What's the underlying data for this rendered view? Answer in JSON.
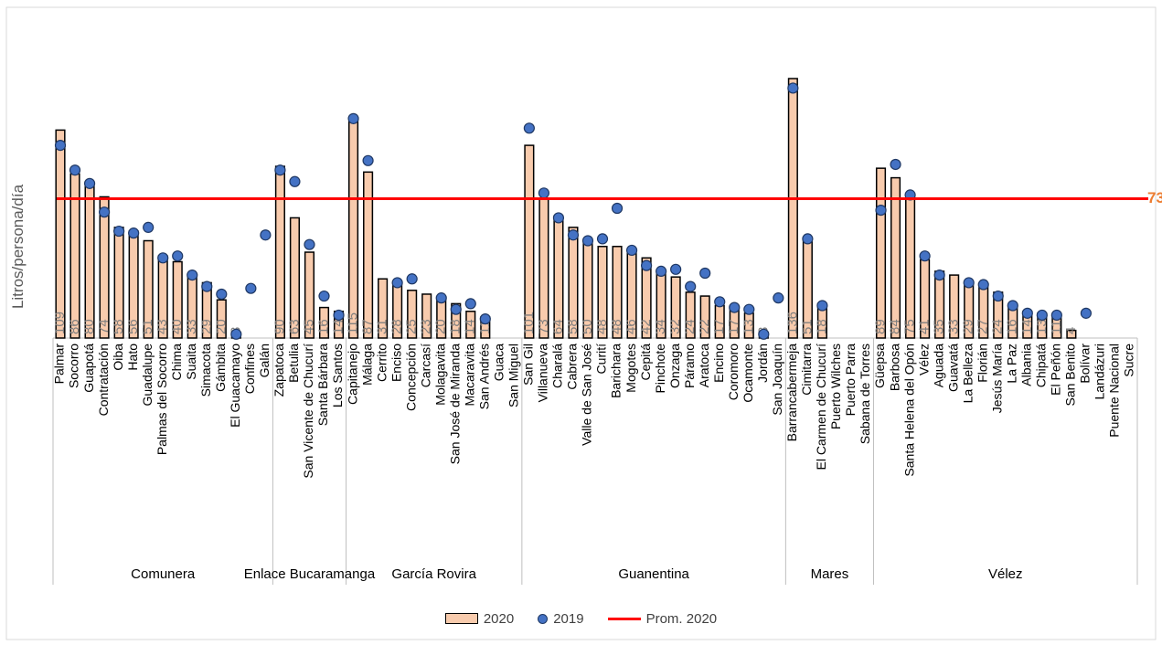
{
  "chart_data": {
    "type": "bar",
    "ylabel": "Litros/persona/día",
    "average_line": {
      "name": "Prom. 2020",
      "value": 73,
      "label": "73",
      "color": "#ff0000"
    },
    "series_meta": [
      {
        "key": "v2020",
        "name": "2020",
        "kind": "bar",
        "color": "#f8cbad"
      },
      {
        "key": "v2019",
        "name": "2019",
        "kind": "marker",
        "color": "#4472c4"
      },
      {
        "key": "avg",
        "name": "Prom. 2020",
        "kind": "line",
        "color": "#ff0000"
      }
    ],
    "ylim": [
      0,
      140
    ],
    "groups": [
      {
        "name": "Comunera",
        "items": [
          {
            "cat": "Palmar",
            "v2020": 109,
            "v2019": 101
          },
          {
            "cat": "Socorro",
            "v2020": 86,
            "v2019": 88
          },
          {
            "cat": "Guapotá",
            "v2020": 80,
            "v2019": 81
          },
          {
            "cat": "Contratación",
            "v2020": 74,
            "v2019": 66
          },
          {
            "cat": "Oiba",
            "v2020": 58,
            "v2019": 56
          },
          {
            "cat": "Hato",
            "v2020": 56,
            "v2019": 55
          },
          {
            "cat": "Guadalupe",
            "v2020": 51,
            "v2019": 58
          },
          {
            "cat": "Palmas del Socorro",
            "v2020": 43,
            "v2019": 42
          },
          {
            "cat": "Chima",
            "v2020": 40,
            "v2019": 43
          },
          {
            "cat": "Suaita",
            "v2020": 33,
            "v2019": 33
          },
          {
            "cat": "Simacota",
            "v2020": 29,
            "v2019": 27
          },
          {
            "cat": "Gámbita",
            "v2020": 20,
            "v2019": 23
          },
          {
            "cat": "El Guacamayo",
            "v2020": 3,
            "v2019": 2
          },
          {
            "cat": "Confines",
            "v2020": null,
            "v2019": 26
          },
          {
            "cat": "Galán",
            "v2020": null,
            "v2019": 54
          }
        ]
      },
      {
        "name": "Enlace Bucaramanga",
        "items": [
          {
            "cat": "Zapatoca",
            "v2020": 90,
            "v2019": 88
          },
          {
            "cat": "Betulia",
            "v2020": 63,
            "v2019": 82
          },
          {
            "cat": "San Vicente de Chucurí",
            "v2020": 45,
            "v2019": 49
          },
          {
            "cat": "Santa Bárbara",
            "v2020": 16,
            "v2019": 22
          },
          {
            "cat": "Los Santos",
            "v2020": 14,
            "v2019": 12
          }
        ]
      },
      {
        "name": "García Rovira",
        "items": [
          {
            "cat": "Capitanejo",
            "v2020": 115,
            "v2019": 115
          },
          {
            "cat": "Málaga",
            "v2020": 87,
            "v2019": 93
          },
          {
            "cat": "Cerrito",
            "v2020": 31,
            "v2019": null
          },
          {
            "cat": "Enciso",
            "v2020": 28,
            "v2019": 29
          },
          {
            "cat": "Concepción",
            "v2020": 25,
            "v2019": 31
          },
          {
            "cat": "Carcasí",
            "v2020": 23,
            "v2019": null
          },
          {
            "cat": "Molagavita",
            "v2020": 20,
            "v2019": 21
          },
          {
            "cat": "San José de Miranda",
            "v2020": 18,
            "v2019": 15
          },
          {
            "cat": "Macaravita",
            "v2020": 14,
            "v2019": 18
          },
          {
            "cat": "San Andrés",
            "v2020": 11,
            "v2019": 10
          },
          {
            "cat": "Guaca",
            "v2020": null,
            "v2019": null
          },
          {
            "cat": "San Miguel",
            "v2020": null,
            "v2019": null
          }
        ]
      },
      {
        "name": "Guanentina",
        "items": [
          {
            "cat": "San Gil",
            "v2020": 101,
            "v2019": 110
          },
          {
            "cat": "Villanueva",
            "v2020": 73,
            "v2019": 76
          },
          {
            "cat": "Charalá",
            "v2020": 64,
            "v2019": 63
          },
          {
            "cat": "Cabrera",
            "v2020": 58,
            "v2019": 54
          },
          {
            "cat": "Valle de San José",
            "v2020": 50,
            "v2019": 51
          },
          {
            "cat": "Curití",
            "v2020": 48,
            "v2019": 52
          },
          {
            "cat": "Barichara",
            "v2020": 48,
            "v2019": 68
          },
          {
            "cat": "Mogotes",
            "v2020": 46,
            "v2019": 46
          },
          {
            "cat": "Cepitá",
            "v2020": 42,
            "v2019": 38
          },
          {
            "cat": "Pinchote",
            "v2020": 34,
            "v2019": 35
          },
          {
            "cat": "Onzaga",
            "v2020": 32,
            "v2019": 36
          },
          {
            "cat": "Páramo",
            "v2020": 24,
            "v2019": 27
          },
          {
            "cat": "Aratoca",
            "v2020": 22,
            "v2019": 34
          },
          {
            "cat": "Encino",
            "v2020": 17,
            "v2019": 19
          },
          {
            "cat": "Coromoro",
            "v2020": 17,
            "v2019": 16
          },
          {
            "cat": "Ocamonte",
            "v2020": 13,
            "v2019": 15
          },
          {
            "cat": "Jordán",
            "v2020": 3,
            "v2019": 2
          },
          {
            "cat": "San Joaquín",
            "v2020": null,
            "v2019": 21
          }
        ]
      },
      {
        "name": "Mares",
        "items": [
          {
            "cat": "Barrancabermeja",
            "v2020": 136,
            "v2019": 131
          },
          {
            "cat": "Cimitarra",
            "v2020": 51,
            "v2019": 52
          },
          {
            "cat": "El Carmen de Chucurí",
            "v2020": 18,
            "v2019": 17
          },
          {
            "cat": "Puerto Wilches",
            "v2020": null,
            "v2019": null
          },
          {
            "cat": "Puerto Parra",
            "v2020": null,
            "v2019": null
          },
          {
            "cat": "Sabana de Torres",
            "v2020": null,
            "v2019": null
          }
        ]
      },
      {
        "name": "Vélez",
        "items": [
          {
            "cat": "Güepsa",
            "v2020": 89,
            "v2019": 67
          },
          {
            "cat": "Barbosa",
            "v2020": 84,
            "v2019": 91
          },
          {
            "cat": "Santa Helena del Opón",
            "v2020": 75,
            "v2019": 75
          },
          {
            "cat": "Vélez",
            "v2020": 41,
            "v2019": 43
          },
          {
            "cat": "Aguada",
            "v2020": 35,
            "v2019": 33
          },
          {
            "cat": "Guavatá",
            "v2020": 33,
            "v2019": null
          },
          {
            "cat": "La Belleza",
            "v2020": 29,
            "v2019": 29
          },
          {
            "cat": "Florián",
            "v2020": 27,
            "v2019": 28
          },
          {
            "cat": "Jesús María",
            "v2020": 24,
            "v2019": 22
          },
          {
            "cat": "La Paz",
            "v2020": 16,
            "v2019": 17
          },
          {
            "cat": "Albania",
            "v2020": 14,
            "v2019": 13
          },
          {
            "cat": "Chipatá",
            "v2020": 13,
            "v2019": 12
          },
          {
            "cat": "El Peñón",
            "v2020": 11,
            "v2019": 12
          },
          {
            "cat": "San Benito",
            "v2020": 4,
            "v2019": null
          },
          {
            "cat": "Bolívar",
            "v2020": null,
            "v2019": 13
          },
          {
            "cat": "Landázuri",
            "v2020": null,
            "v2019": null
          },
          {
            "cat": "Puente Nacional",
            "v2020": null,
            "v2019": null
          },
          {
            "cat": "Sucre",
            "v2020": null,
            "v2019": null
          }
        ]
      }
    ],
    "grid": false,
    "legend_position": "bottom"
  }
}
